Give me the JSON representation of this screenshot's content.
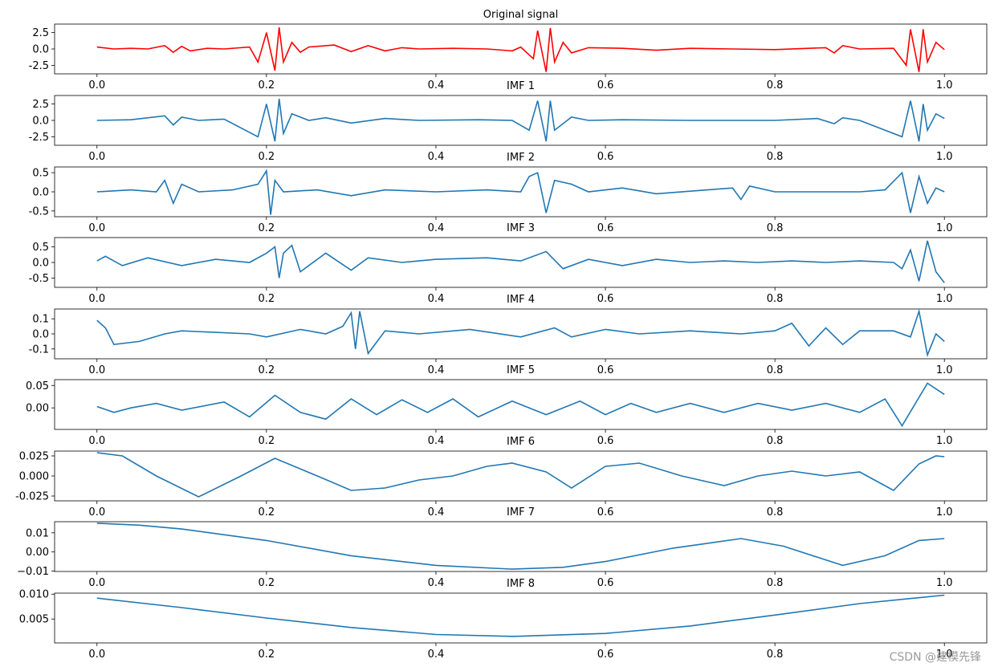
{
  "watermark": "CSDN @建模先锋",
  "colors": {
    "signal": "#ff0000",
    "imf": "#1f77b4"
  },
  "x_ticks": [
    0.0,
    0.2,
    0.4,
    0.6,
    0.8,
    1.0
  ],
  "x_tick_labels": [
    "0.0",
    "0.2",
    "0.4",
    "0.6",
    "0.8",
    "1.0"
  ],
  "xlim": [
    -0.05,
    1.05
  ],
  "chart_data": [
    {
      "type": "line",
      "title": "Original signal",
      "color": "#ff0000",
      "ylim": [
        -3.8,
        3.8
      ],
      "yticks": [
        2.5,
        0.0,
        -2.5
      ],
      "ytick_labels": [
        "2.5",
        "0.0",
        "-2.5"
      ],
      "points": [
        [
          0.0,
          0.3
        ],
        [
          0.02,
          0.0
        ],
        [
          0.04,
          0.1
        ],
        [
          0.06,
          0.0
        ],
        [
          0.08,
          0.5
        ],
        [
          0.09,
          -0.5
        ],
        [
          0.1,
          0.4
        ],
        [
          0.11,
          -0.3
        ],
        [
          0.13,
          0.1
        ],
        [
          0.15,
          0.0
        ],
        [
          0.18,
          0.3
        ],
        [
          0.19,
          -2.0
        ],
        [
          0.2,
          2.5
        ],
        [
          0.21,
          -3.3
        ],
        [
          0.215,
          3.3
        ],
        [
          0.22,
          -2.0
        ],
        [
          0.23,
          1.0
        ],
        [
          0.24,
          -0.5
        ],
        [
          0.25,
          0.3
        ],
        [
          0.28,
          0.6
        ],
        [
          0.3,
          -0.4
        ],
        [
          0.32,
          0.5
        ],
        [
          0.34,
          -0.3
        ],
        [
          0.36,
          0.2
        ],
        [
          0.38,
          0.0
        ],
        [
          0.42,
          0.1
        ],
        [
          0.46,
          0.0
        ],
        [
          0.49,
          -0.3
        ],
        [
          0.5,
          0.3
        ],
        [
          0.515,
          -1.5
        ],
        [
          0.52,
          2.8
        ],
        [
          0.53,
          -3.5
        ],
        [
          0.535,
          3.2
        ],
        [
          0.54,
          -2.0
        ],
        [
          0.55,
          1.0
        ],
        [
          0.56,
          -0.6
        ],
        [
          0.58,
          0.2
        ],
        [
          0.62,
          0.1
        ],
        [
          0.66,
          -0.2
        ],
        [
          0.7,
          0.1
        ],
        [
          0.75,
          0.0
        ],
        [
          0.8,
          -0.1
        ],
        [
          0.86,
          0.2
        ],
        [
          0.87,
          -0.6
        ],
        [
          0.88,
          0.5
        ],
        [
          0.9,
          0.0
        ],
        [
          0.94,
          0.1
        ],
        [
          0.955,
          -2.5
        ],
        [
          0.96,
          3.0
        ],
        [
          0.97,
          -3.5
        ],
        [
          0.975,
          3.0
        ],
        [
          0.98,
          -2.0
        ],
        [
          0.99,
          1.0
        ],
        [
          1.0,
          -0.1
        ]
      ]
    },
    {
      "type": "line",
      "title": "IMF 1",
      "color": "#1f77b4",
      "ylim": [
        -3.8,
        3.8
      ],
      "yticks": [
        2.5,
        0.0,
        -2.5
      ],
      "ytick_labels": [
        "2.5",
        "0.0",
        "-2.5"
      ],
      "points": [
        [
          0.0,
          0.0
        ],
        [
          0.04,
          0.1
        ],
        [
          0.08,
          0.7
        ],
        [
          0.09,
          -0.7
        ],
        [
          0.1,
          0.5
        ],
        [
          0.12,
          0.0
        ],
        [
          0.15,
          0.2
        ],
        [
          0.19,
          -2.5
        ],
        [
          0.2,
          2.5
        ],
        [
          0.21,
          -3.2
        ],
        [
          0.215,
          3.3
        ],
        [
          0.22,
          -2.0
        ],
        [
          0.23,
          1.0
        ],
        [
          0.25,
          0.0
        ],
        [
          0.27,
          0.4
        ],
        [
          0.3,
          -0.4
        ],
        [
          0.34,
          0.3
        ],
        [
          0.38,
          0.0
        ],
        [
          0.45,
          0.1
        ],
        [
          0.49,
          0.0
        ],
        [
          0.51,
          -1.5
        ],
        [
          0.52,
          3.0
        ],
        [
          0.53,
          -3.2
        ],
        [
          0.535,
          3.0
        ],
        [
          0.54,
          -1.5
        ],
        [
          0.56,
          0.5
        ],
        [
          0.58,
          0.0
        ],
        [
          0.62,
          0.1
        ],
        [
          0.7,
          0.0
        ],
        [
          0.8,
          0.0
        ],
        [
          0.85,
          0.3
        ],
        [
          0.87,
          -0.5
        ],
        [
          0.88,
          0.4
        ],
        [
          0.9,
          0.0
        ],
        [
          0.95,
          -2.5
        ],
        [
          0.96,
          3.0
        ],
        [
          0.97,
          -3.2
        ],
        [
          0.975,
          2.5
        ],
        [
          0.98,
          -1.5
        ],
        [
          0.99,
          1.0
        ],
        [
          1.0,
          0.3
        ]
      ]
    },
    {
      "type": "line",
      "title": "IMF 2",
      "color": "#1f77b4",
      "ylim": [
        -0.65,
        0.65
      ],
      "yticks": [
        0.5,
        0.0,
        -0.5
      ],
      "ytick_labels": [
        "0.5",
        "0.0",
        "-0.5"
      ],
      "points": [
        [
          0.0,
          0.0
        ],
        [
          0.04,
          0.05
        ],
        [
          0.07,
          0.0
        ],
        [
          0.08,
          0.3
        ],
        [
          0.09,
          -0.3
        ],
        [
          0.1,
          0.2
        ],
        [
          0.12,
          0.0
        ],
        [
          0.16,
          0.05
        ],
        [
          0.19,
          0.2
        ],
        [
          0.2,
          0.55
        ],
        [
          0.205,
          -0.6
        ],
        [
          0.21,
          0.3
        ],
        [
          0.22,
          0.0
        ],
        [
          0.26,
          0.05
        ],
        [
          0.3,
          -0.1
        ],
        [
          0.34,
          0.05
        ],
        [
          0.4,
          0.0
        ],
        [
          0.46,
          0.05
        ],
        [
          0.5,
          0.0
        ],
        [
          0.51,
          0.4
        ],
        [
          0.52,
          0.5
        ],
        [
          0.53,
          -0.55
        ],
        [
          0.54,
          0.3
        ],
        [
          0.56,
          0.2
        ],
        [
          0.58,
          0.0
        ],
        [
          0.62,
          0.1
        ],
        [
          0.66,
          -0.05
        ],
        [
          0.72,
          0.05
        ],
        [
          0.75,
          0.1
        ],
        [
          0.76,
          -0.2
        ],
        [
          0.77,
          0.15
        ],
        [
          0.8,
          0.0
        ],
        [
          0.9,
          0.0
        ],
        [
          0.93,
          0.05
        ],
        [
          0.95,
          0.5
        ],
        [
          0.96,
          -0.55
        ],
        [
          0.97,
          0.4
        ],
        [
          0.98,
          -0.3
        ],
        [
          0.99,
          0.1
        ],
        [
          1.0,
          0.0
        ]
      ]
    },
    {
      "type": "line",
      "title": "IMF 3",
      "color": "#1f77b4",
      "ylim": [
        -0.8,
        0.8
      ],
      "yticks": [
        0.5,
        0.0,
        -0.5
      ],
      "ytick_labels": [
        "0.5",
        "0.0",
        "-0.5"
      ],
      "points": [
        [
          0.0,
          0.05
        ],
        [
          0.01,
          0.2
        ],
        [
          0.03,
          -0.1
        ],
        [
          0.06,
          0.15
        ],
        [
          0.1,
          -0.1
        ],
        [
          0.14,
          0.1
        ],
        [
          0.18,
          0.0
        ],
        [
          0.2,
          0.3
        ],
        [
          0.21,
          0.5
        ],
        [
          0.215,
          -0.5
        ],
        [
          0.22,
          0.3
        ],
        [
          0.23,
          0.55
        ],
        [
          0.24,
          -0.3
        ],
        [
          0.27,
          0.3
        ],
        [
          0.3,
          -0.25
        ],
        [
          0.32,
          0.15
        ],
        [
          0.36,
          0.0
        ],
        [
          0.4,
          0.1
        ],
        [
          0.46,
          0.15
        ],
        [
          0.5,
          0.05
        ],
        [
          0.53,
          0.35
        ],
        [
          0.55,
          -0.2
        ],
        [
          0.58,
          0.1
        ],
        [
          0.62,
          -0.1
        ],
        [
          0.66,
          0.1
        ],
        [
          0.7,
          0.0
        ],
        [
          0.74,
          0.05
        ],
        [
          0.78,
          0.0
        ],
        [
          0.82,
          0.05
        ],
        [
          0.86,
          0.0
        ],
        [
          0.9,
          0.05
        ],
        [
          0.94,
          0.0
        ],
        [
          0.95,
          -0.2
        ],
        [
          0.96,
          0.4
        ],
        [
          0.97,
          -0.6
        ],
        [
          0.98,
          0.7
        ],
        [
          0.99,
          -0.3
        ],
        [
          1.0,
          -0.65
        ]
      ]
    },
    {
      "type": "line",
      "title": "IMF 4",
      "color": "#1f77b4",
      "ylim": [
        -0.165,
        0.165
      ],
      "yticks": [
        0.1,
        0.0,
        -0.1
      ],
      "ytick_labels": [
        "0.1",
        "0.0",
        "-0.1"
      ],
      "points": [
        [
          0.0,
          0.09
        ],
        [
          0.01,
          0.04
        ],
        [
          0.02,
          -0.07
        ],
        [
          0.05,
          -0.05
        ],
        [
          0.08,
          0.0
        ],
        [
          0.1,
          0.02
        ],
        [
          0.14,
          0.01
        ],
        [
          0.18,
          0.0
        ],
        [
          0.2,
          -0.02
        ],
        [
          0.24,
          0.03
        ],
        [
          0.27,
          0.0
        ],
        [
          0.29,
          0.05
        ],
        [
          0.3,
          0.14
        ],
        [
          0.305,
          -0.1
        ],
        [
          0.31,
          0.15
        ],
        [
          0.32,
          -0.13
        ],
        [
          0.34,
          0.02
        ],
        [
          0.38,
          0.0
        ],
        [
          0.44,
          0.03
        ],
        [
          0.5,
          -0.02
        ],
        [
          0.54,
          0.04
        ],
        [
          0.56,
          -0.02
        ],
        [
          0.6,
          0.03
        ],
        [
          0.64,
          0.0
        ],
        [
          0.7,
          0.02
        ],
        [
          0.76,
          0.0
        ],
        [
          0.8,
          0.02
        ],
        [
          0.82,
          0.07
        ],
        [
          0.84,
          -0.08
        ],
        [
          0.86,
          0.04
        ],
        [
          0.88,
          -0.07
        ],
        [
          0.9,
          0.02
        ],
        [
          0.94,
          0.02
        ],
        [
          0.96,
          -0.02
        ],
        [
          0.97,
          0.15
        ],
        [
          0.98,
          -0.14
        ],
        [
          0.99,
          0.0
        ],
        [
          1.0,
          -0.05
        ]
      ]
    },
    {
      "type": "line",
      "title": "IMF 5",
      "color": "#1f77b4",
      "ylim": [
        -0.048,
        0.063
      ],
      "yticks": [
        0.05,
        0.0
      ],
      "ytick_labels": [
        "0.05",
        "0.00"
      ],
      "points": [
        [
          0.0,
          0.003
        ],
        [
          0.02,
          -0.01
        ],
        [
          0.04,
          0.0
        ],
        [
          0.07,
          0.01
        ],
        [
          0.1,
          -0.005
        ],
        [
          0.15,
          0.013
        ],
        [
          0.18,
          -0.02
        ],
        [
          0.21,
          0.028
        ],
        [
          0.24,
          -0.01
        ],
        [
          0.27,
          -0.025
        ],
        [
          0.3,
          0.02
        ],
        [
          0.33,
          -0.015
        ],
        [
          0.36,
          0.018
        ],
        [
          0.39,
          -0.01
        ],
        [
          0.42,
          0.02
        ],
        [
          0.45,
          -0.02
        ],
        [
          0.49,
          0.015
        ],
        [
          0.53,
          -0.015
        ],
        [
          0.57,
          0.015
        ],
        [
          0.6,
          -0.015
        ],
        [
          0.63,
          0.01
        ],
        [
          0.66,
          -0.01
        ],
        [
          0.7,
          0.01
        ],
        [
          0.74,
          -0.01
        ],
        [
          0.78,
          0.01
        ],
        [
          0.82,
          -0.005
        ],
        [
          0.86,
          0.01
        ],
        [
          0.9,
          -0.01
        ],
        [
          0.93,
          0.02
        ],
        [
          0.95,
          -0.04
        ],
        [
          0.98,
          0.055
        ],
        [
          1.0,
          0.03
        ]
      ]
    },
    {
      "type": "line",
      "title": "IMF 6",
      "color": "#1f77b4",
      "ylim": [
        -0.031,
        0.031
      ],
      "yticks": [
        0.025,
        0.0,
        -0.025
      ],
      "ytick_labels": [
        "0.025",
        "0.000",
        "-0.025"
      ],
      "points": [
        [
          0.0,
          0.029
        ],
        [
          0.03,
          0.025
        ],
        [
          0.07,
          0.0
        ],
        [
          0.12,
          -0.026
        ],
        [
          0.17,
          0.0
        ],
        [
          0.21,
          0.022
        ],
        [
          0.26,
          0.0
        ],
        [
          0.3,
          -0.018
        ],
        [
          0.34,
          -0.015
        ],
        [
          0.38,
          -0.005
        ],
        [
          0.42,
          0.0
        ],
        [
          0.46,
          0.012
        ],
        [
          0.49,
          0.016
        ],
        [
          0.53,
          0.005
        ],
        [
          0.56,
          -0.015
        ],
        [
          0.6,
          0.012
        ],
        [
          0.64,
          0.016
        ],
        [
          0.69,
          0.0
        ],
        [
          0.74,
          -0.012
        ],
        [
          0.78,
          0.0
        ],
        [
          0.82,
          0.006
        ],
        [
          0.86,
          0.0
        ],
        [
          0.9,
          0.005
        ],
        [
          0.94,
          -0.018
        ],
        [
          0.97,
          0.015
        ],
        [
          0.99,
          0.025
        ],
        [
          1.0,
          0.024
        ]
      ]
    },
    {
      "type": "line",
      "title": "IMF 7",
      "color": "#1f77b4",
      "ylim": [
        -0.0102,
        0.0158
      ],
      "yticks": [
        0.01,
        0.0,
        -0.01
      ],
      "ytick_labels": [
        "0.01",
        "0.00",
        "−0.01"
      ],
      "points": [
        [
          0.0,
          0.015
        ],
        [
          0.05,
          0.014
        ],
        [
          0.1,
          0.012
        ],
        [
          0.2,
          0.006
        ],
        [
          0.3,
          -0.002
        ],
        [
          0.4,
          -0.007
        ],
        [
          0.49,
          -0.009
        ],
        [
          0.55,
          -0.008
        ],
        [
          0.6,
          -0.005
        ],
        [
          0.68,
          0.002
        ],
        [
          0.76,
          0.007
        ],
        [
          0.81,
          0.003
        ],
        [
          0.88,
          -0.007
        ],
        [
          0.93,
          -0.002
        ],
        [
          0.97,
          0.006
        ],
        [
          1.0,
          0.007
        ]
      ]
    },
    {
      "type": "line",
      "title": "IMF 8",
      "color": "#1f77b4",
      "ylim": [
        0.0002,
        0.0102
      ],
      "yticks": [
        0.01,
        0.005
      ],
      "ytick_labels": [
        "0.010",
        "0.005"
      ],
      "points": [
        [
          0.0,
          0.0092
        ],
        [
          0.1,
          0.0073
        ],
        [
          0.2,
          0.0052
        ],
        [
          0.3,
          0.0033
        ],
        [
          0.4,
          0.0019
        ],
        [
          0.49,
          0.0015
        ],
        [
          0.6,
          0.0021
        ],
        [
          0.7,
          0.0036
        ],
        [
          0.8,
          0.0058
        ],
        [
          0.9,
          0.0081
        ],
        [
          1.0,
          0.0098
        ]
      ]
    }
  ]
}
